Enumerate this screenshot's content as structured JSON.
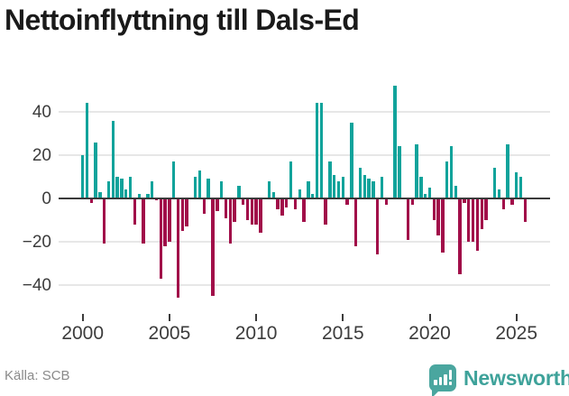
{
  "title": "Nettoinflyttning till Dals-Ed",
  "footer": {
    "source": "Källa: SCB"
  },
  "brand": {
    "name": "Newsworthy",
    "icon": "bar-chart-pin-icon"
  },
  "colors": {
    "background": "#ffffff",
    "positive_bar": "#11a39b",
    "negative_bar": "#a10d49",
    "gridline": "#e7e7e7",
    "zero_line": "#3a3a3a",
    "axis_text": "#3c3c3c",
    "title_text": "#1a1a1a",
    "source_text": "#8a8a8a",
    "brand_teal": "#4aa69f"
  },
  "chart_data": {
    "type": "bar",
    "title": "Nettoinflyttning till Dals-Ed",
    "xlabel": "",
    "ylabel": "",
    "frequency": "quarterly",
    "period_start": "2000 Q1",
    "period_end": "2025 Q3",
    "x_ticks": [
      2000,
      2005,
      2010,
      2015,
      2020,
      2025
    ],
    "y_ticks": [
      40,
      20,
      0,
      -20,
      -40
    ],
    "ylim": [
      -50,
      56
    ],
    "grid": "horizontal",
    "legend": "none",
    "source": "SCB",
    "values": [
      20,
      44,
      -2,
      26,
      3,
      -21,
      8,
      36,
      10,
      9,
      4,
      10,
      -12,
      2,
      -21,
      2,
      8,
      -1,
      -37,
      -22,
      -20,
      17,
      -46,
      -15,
      -13,
      0,
      10,
      13,
      -7,
      9,
      -45,
      -6,
      8,
      -9,
      -21,
      -11,
      6,
      -3,
      -10,
      -12,
      -12,
      -16,
      0,
      8,
      3,
      -5,
      -8,
      -4,
      17,
      -5,
      4,
      -11,
      8,
      2,
      44,
      44,
      -12,
      17,
      11,
      8,
      10,
      -3,
      35,
      -22,
      14,
      11,
      9,
      8,
      -26,
      10,
      -3,
      0,
      52,
      24,
      0,
      -19,
      -3,
      25,
      10,
      2,
      5,
      -10,
      -17,
      -25,
      17,
      24,
      6,
      -35,
      -2,
      -20,
      -20,
      -24,
      -14,
      -10,
      0,
      14,
      4,
      -5,
      25,
      -3,
      12,
      10,
      -11
    ]
  }
}
